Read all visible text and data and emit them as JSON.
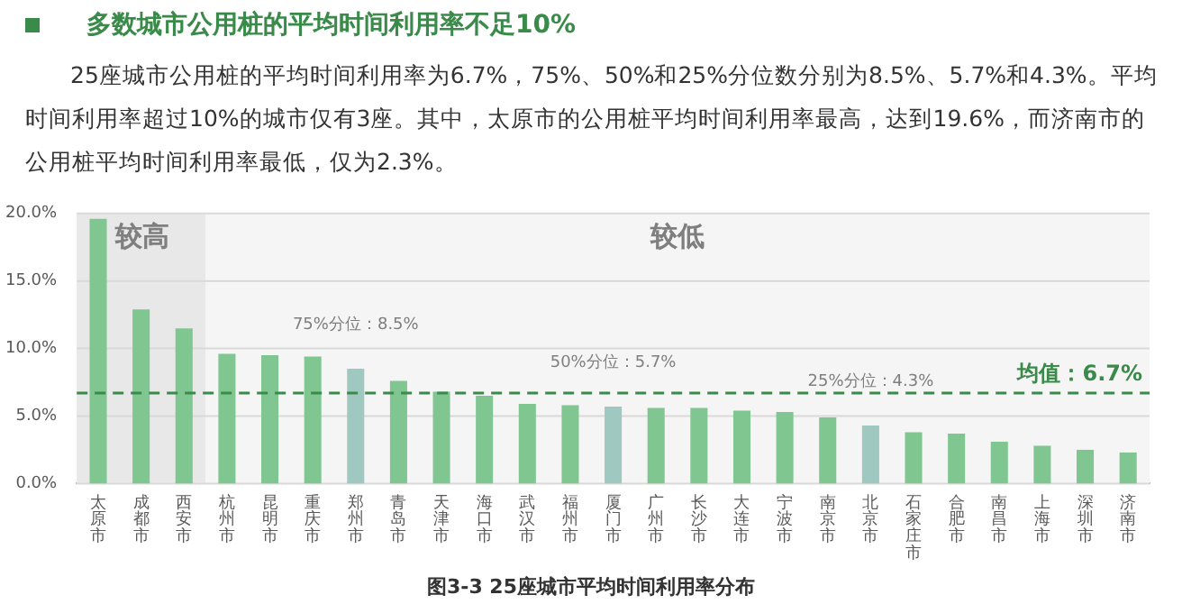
{
  "chart_data": {
    "type": "bar",
    "title": "多数城市公用桩的平均时间利用率不足10%",
    "subtitle": "25座城市公用桩的平均时间利用率为6.7%，75%、50%和25%分位数分别为8.5%、5.7%和4.3%。平均时间利用率超过10%的城市仅有3座。其中，太原市的公用桩平均时间利用率最高，达到19.6%，而济南市的公用桩平均时间利用率最低，仅为2.3%。",
    "categories": [
      "太原市",
      "成都市",
      "西安市",
      "杭州市",
      "昆明市",
      "重庆市",
      "郑州市",
      "青岛市",
      "天津市",
      "海口市",
      "武汉市",
      "福州市",
      "厦门市",
      "广州市",
      "长沙市",
      "大连市",
      "宁波市",
      "南京市",
      "北京市",
      "石家庄市",
      "合肥市",
      "南昌市",
      "上海市",
      "深圳市",
      "济南市"
    ],
    "values": [
      19.6,
      12.9,
      11.5,
      9.6,
      9.5,
      9.4,
      8.5,
      7.6,
      6.8,
      6.5,
      5.9,
      5.8,
      5.7,
      5.6,
      5.6,
      5.4,
      5.3,
      4.9,
      4.3,
      3.8,
      3.7,
      3.1,
      2.8,
      2.5,
      2.3
    ],
    "colors": [
      "#7fc691",
      "#7fc691",
      "#7fc691",
      "#7fc691",
      "#7fc691",
      "#7fc691",
      "#9fc8c0",
      "#7fc691",
      "#7fc691",
      "#7fc691",
      "#7fc691",
      "#7fc691",
      "#9fc8c0",
      "#7fc691",
      "#7fc691",
      "#7fc691",
      "#7fc691",
      "#7fc691",
      "#9fc8c0",
      "#7fc691",
      "#7fc691",
      "#7fc691",
      "#7fc691",
      "#7fc691",
      "#7fc691"
    ],
    "ylim": [
      0,
      20
    ],
    "yticks": [
      {
        "value": 0,
        "label": "0.0%"
      },
      {
        "value": 5,
        "label": "5.0%"
      },
      {
        "value": 10,
        "label": "10.0%"
      },
      {
        "value": 15,
        "label": "15.0%"
      },
      {
        "value": 20,
        "label": "20.0%"
      }
    ],
    "grid": "y",
    "legend": false,
    "ref_lines": [
      {
        "axis": "y",
        "value": 6.7,
        "label": "均值：6.7%",
        "color": "#3a8a4a",
        "line_style": "dashed"
      }
    ],
    "bands": [
      {
        "axis": "x",
        "from": "太原市",
        "to": "西安市",
        "label": "较高",
        "color": "#e8e8e8"
      },
      {
        "axis": "x",
        "from": "杭州市",
        "to": "济南市",
        "label": "较低",
        "color": "#f5f5f5"
      }
    ],
    "annotations": [
      {
        "text": "75%分位：8.5%",
        "x": "郑州市",
        "y": 8.5
      },
      {
        "text": "50%分位：5.7%",
        "x": "厦门市",
        "y": 5.7
      },
      {
        "text": "25%分位：4.3%",
        "x": "北京市",
        "y": 4.3
      },
      "图3-3 25座城市平均时间利用率分布"
    ]
  }
}
